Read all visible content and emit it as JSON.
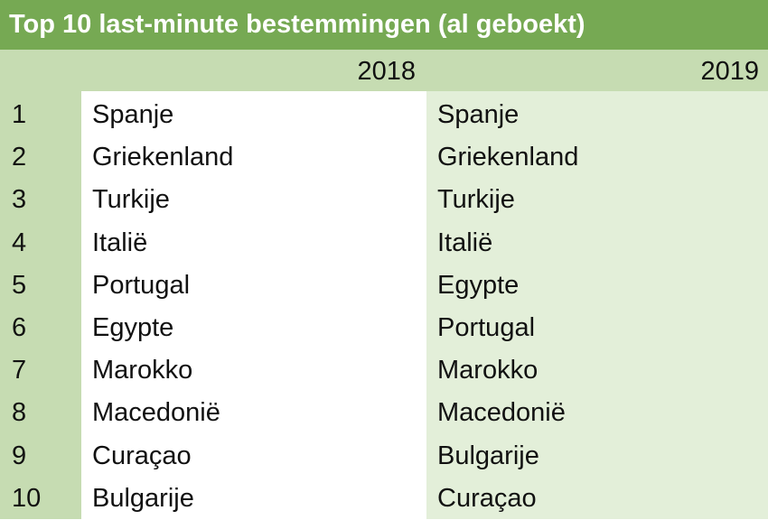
{
  "header": {
    "title": "Top 10 last-minute bestemmingen (al geboekt)",
    "columns": [
      2018,
      2019
    ]
  },
  "table": {
    "rows": [
      [
        1,
        "Spanje",
        "Spanje"
      ],
      [
        2,
        "Griekenland",
        "Griekenland"
      ],
      [
        3,
        "Turkije",
        "Turkije"
      ],
      [
        4,
        "Italië",
        "Italië"
      ],
      [
        5,
        "Portugal",
        "Egypte"
      ],
      [
        6,
        "Egypte",
        "Portugal"
      ],
      [
        7,
        "Marokko",
        "Marokko"
      ],
      [
        8,
        "Macedonië",
        "Macedonië"
      ],
      [
        9,
        "Curaçao",
        "Bulgarije"
      ],
      [
        10,
        "Bulgarije",
        "Curaçao"
      ]
    ]
  }
}
